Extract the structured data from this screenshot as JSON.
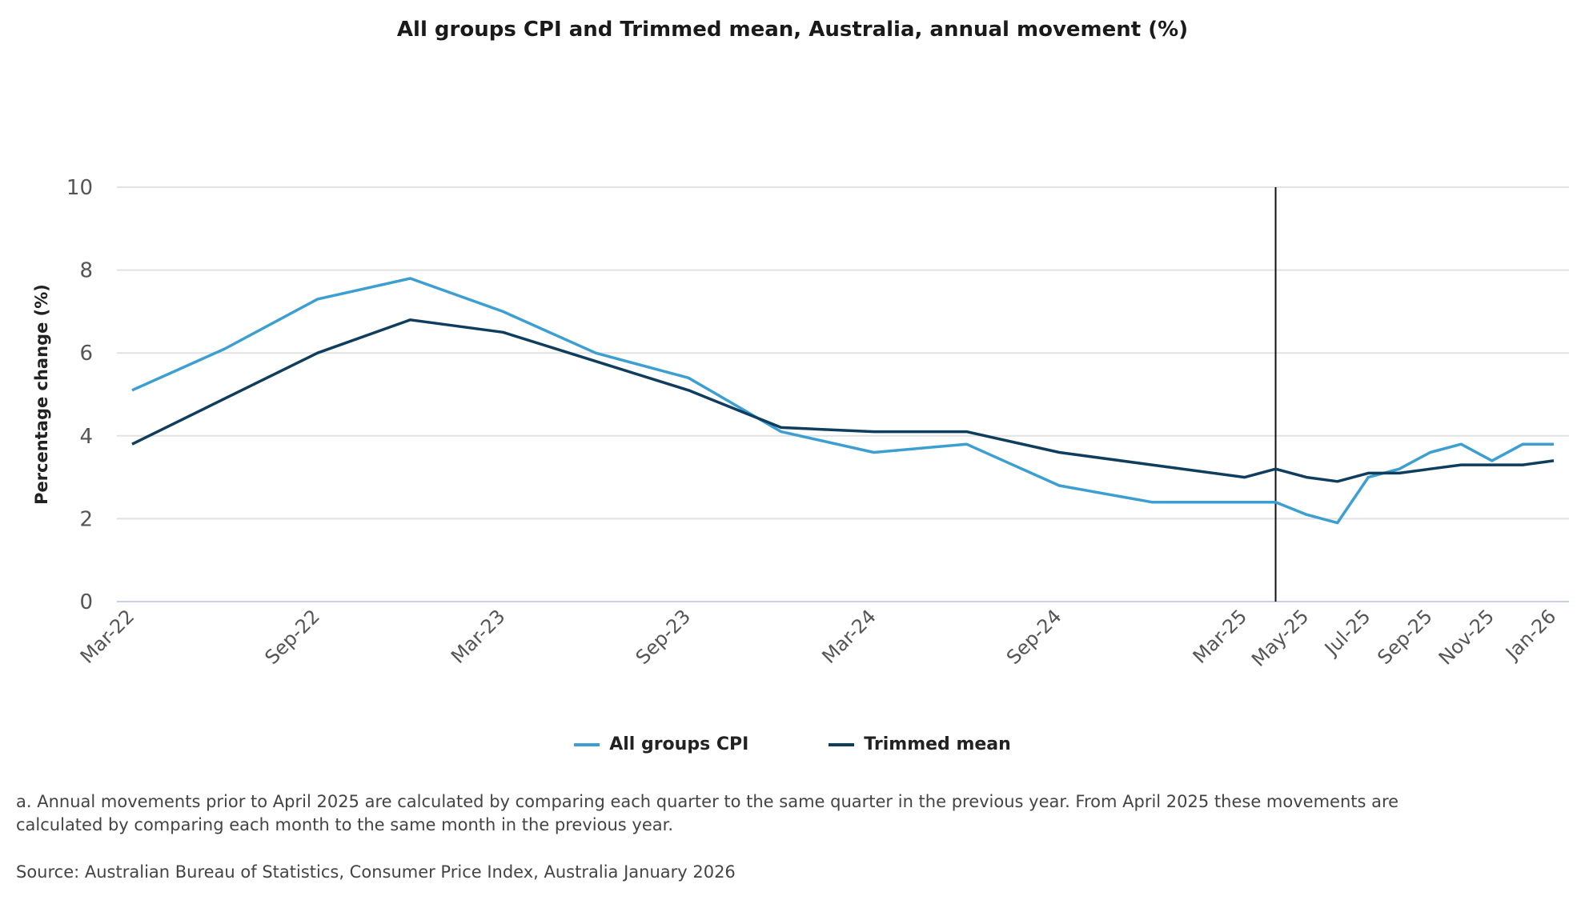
{
  "chart_data": {
    "type": "line",
    "title": "All groups CPI and Trimmed mean, Australia, annual movement (%)",
    "xlabel": "",
    "ylabel": "Percentage change (%)",
    "ylim": [
      0,
      10
    ],
    "yticks": [
      0,
      2,
      4,
      6,
      8,
      10
    ],
    "grid": true,
    "legend": "bottom",
    "x": [
      "Mar-22",
      "Jun-22",
      "Sep-22",
      "Dec-22",
      "Mar-23",
      "Jun-23",
      "Sep-23",
      "Dec-23",
      "Mar-24",
      "Jun-24",
      "Sep-24",
      "Dec-24",
      "Mar-25",
      "Apr-25",
      "May-25",
      "Jun-25",
      "Jul-25",
      "Aug-25",
      "Sep-25",
      "Oct-25",
      "Nov-25",
      "Dec-25",
      "Jan-26"
    ],
    "xticks": [
      "Mar-22",
      "Sep-22",
      "Mar-23",
      "Sep-23",
      "Mar-24",
      "Sep-24",
      "Mar-25",
      "May-25",
      "Jul-25",
      "Sep-25",
      "Nov-25",
      "Jan-26"
    ],
    "vertical_marker": "Apr-25",
    "series": [
      {
        "name": "All groups CPI",
        "color": "#3c9fd2",
        "values": [
          5.1,
          6.1,
          7.3,
          7.8,
          7.0,
          6.0,
          5.4,
          4.1,
          3.6,
          3.8,
          2.8,
          2.4,
          2.4,
          2.4,
          2.1,
          1.9,
          3.0,
          3.2,
          3.6,
          3.8,
          3.4,
          3.8,
          3.8
        ]
      },
      {
        "name": "Trimmed mean",
        "color": "#0f3d5e",
        "values": [
          3.8,
          4.9,
          6.0,
          6.8,
          6.5,
          5.8,
          5.1,
          4.2,
          4.1,
          4.1,
          3.6,
          3.3,
          3.0,
          3.2,
          3.0,
          2.9,
          3.1,
          3.1,
          3.2,
          3.3,
          3.3,
          3.3,
          3.4
        ]
      }
    ]
  },
  "footnote": {
    "line1": "a. Annual movements prior to April 2025 are calculated by comparing each quarter to the same quarter in the previous year.  From April 2025 these movements are",
    "line2": "calculated by comparing each month to the same month in the previous year."
  },
  "source": "Source: Australian Bureau of Statistics, Consumer Price Index, Australia January 2026"
}
